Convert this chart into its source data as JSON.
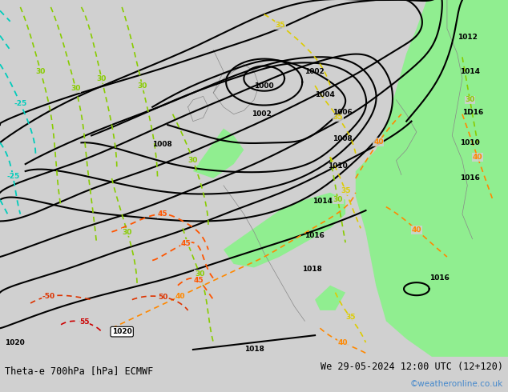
{
  "title_left": "Theta-e 700hPa [hPa] ECMWF",
  "title_right": "We 29-05-2024 12:00 UTC (12+120)",
  "copyright": "©weatheronline.co.uk",
  "bg_color": "#d0d0d0",
  "green_color": "#90ee90",
  "white_color": "#ffffff",
  "copyright_color": "#4488cc",
  "fig_width": 6.34,
  "fig_height": 4.9,
  "dpi": 100
}
